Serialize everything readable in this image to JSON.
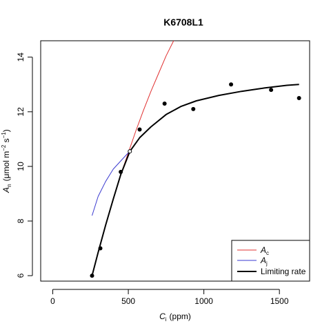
{
  "chart_data": {
    "type": "scatter",
    "title": "K6708L1",
    "xlabel_var": "C",
    "xlabel_sub": "i",
    "xlabel_unit": "(ppm)",
    "ylabel_var": "A",
    "ylabel_sub": "n",
    "ylabel_unit_pre": "(μmol m",
    "ylabel_exp1": "−2",
    "ylabel_mid": " s",
    "ylabel_exp2": "−1",
    "ylabel_post": ")",
    "xlim": [
      -80,
      1700
    ],
    "ylim": [
      5.8,
      14.6
    ],
    "x_ticks": [
      0,
      500,
      1000,
      1500
    ],
    "y_ticks": [
      6,
      8,
      10,
      12,
      14
    ],
    "points": [
      {
        "x": 260,
        "y": 6.0
      },
      {
        "x": 315,
        "y": 7.0
      },
      {
        "x": 450,
        "y": 9.8
      },
      {
        "x": 575,
        "y": 11.35
      },
      {
        "x": 740,
        "y": 12.3
      },
      {
        "x": 930,
        "y": 12.1
      },
      {
        "x": 1180,
        "y": 13.0
      },
      {
        "x": 1445,
        "y": 12.8
      },
      {
        "x": 1630,
        "y": 12.5
      }
    ],
    "transition_point": {
      "x": 510,
      "y": 10.55
    },
    "series": [
      {
        "name_var": "A",
        "name_sub": "c",
        "color": "#e03030",
        "x": [
          260,
          300,
          350,
          400,
          450,
          500,
          550,
          600,
          650,
          700,
          750,
          800,
          815
        ],
        "y": [
          6.0,
          6.85,
          7.85,
          8.8,
          9.7,
          10.5,
          11.3,
          12.05,
          12.75,
          13.4,
          14.05,
          14.6,
          14.75
        ]
      },
      {
        "name_var": "A",
        "name_sub": "j",
        "color": "#3a3ad0",
        "x": [
          260,
          300,
          350,
          400,
          450,
          500
        ],
        "y": [
          8.2,
          8.9,
          9.45,
          9.9,
          10.2,
          10.5
        ]
      },
      {
        "name": "Limiting rate",
        "color": "#000000",
        "x": [
          260,
          300,
          350,
          400,
          450,
          510,
          575,
          650,
          750,
          850,
          950,
          1100,
          1250,
          1400,
          1550,
          1630
        ],
        "y": [
          6.0,
          6.85,
          7.85,
          8.8,
          9.7,
          10.55,
          11.05,
          11.45,
          11.9,
          12.2,
          12.4,
          12.6,
          12.75,
          12.87,
          12.97,
          13.0
        ]
      }
    ],
    "legend_position": "bottom-right",
    "grid": false
  }
}
